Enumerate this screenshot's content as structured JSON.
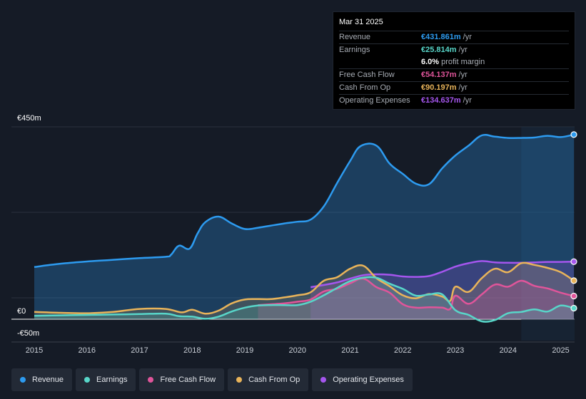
{
  "tooltip": {
    "date": "Mar 31 2025",
    "rows": [
      {
        "label": "Revenue",
        "value": "€431.861m",
        "unit": "/yr",
        "color": "#2d9bf0"
      },
      {
        "label": "Earnings",
        "value": "€25.814m",
        "unit": "/yr",
        "color": "#58d6c9"
      },
      {
        "label": "",
        "value": "6.0%",
        "unit": "profit margin",
        "color": "#ffffff"
      },
      {
        "label": "Free Cash Flow",
        "value": "€54.137m",
        "unit": "/yr",
        "color": "#e0559a"
      },
      {
        "label": "Cash From Op",
        "value": "€90.197m",
        "unit": "/yr",
        "color": "#e9b45a"
      },
      {
        "label": "Operating Expenses",
        "value": "€134.637m",
        "unit": "/yr",
        "color": "#a556ee"
      }
    ]
  },
  "legend": [
    {
      "label": "Revenue",
      "color": "#2d9bf0"
    },
    {
      "label": "Earnings",
      "color": "#58d6c9"
    },
    {
      "label": "Free Cash Flow",
      "color": "#e0559a"
    },
    {
      "label": "Cash From Op",
      "color": "#e9b45a"
    },
    {
      "label": "Operating Expenses",
      "color": "#a556ee"
    }
  ],
  "chart_data": {
    "type": "area",
    "y_tick_labels": [
      "€450m",
      "€0",
      "-€50m"
    ],
    "ylim": [
      -50,
      450
    ],
    "xlim": [
      2015.0,
      2025.25
    ],
    "x_ticks": [
      2015,
      2016,
      2017,
      2018,
      2019,
      2020,
      2021,
      2022,
      2023,
      2024,
      2025
    ],
    "x_tick_labels": [
      "2015",
      "2016",
      "2017",
      "2018",
      "2019",
      "2020",
      "2021",
      "2022",
      "2023",
      "2024",
      "2025"
    ],
    "forecast_start": 2024.25,
    "series": [
      {
        "name": "Revenue",
        "color": "#2d9bf0",
        "fill": true,
        "last_value": 431.861,
        "x": [
          2015.0,
          2015.3,
          2015.6,
          2016.0,
          2016.5,
          2017.0,
          2017.5,
          2017.6,
          2017.75,
          2017.95,
          2018.1,
          2018.25,
          2018.5,
          2018.75,
          2019.0,
          2019.25,
          2019.5,
          2019.75,
          2020.0,
          2020.25,
          2020.5,
          2020.75,
          2021.0,
          2021.2,
          2021.5,
          2021.75,
          2022.0,
          2022.25,
          2022.5,
          2022.75,
          2023.0,
          2023.25,
          2023.5,
          2023.75,
          2024.0,
          2024.25,
          2024.5,
          2024.75,
          2025.0,
          2025.25
        ],
        "values": [
          122,
          127,
          131,
          135,
          139,
          143,
          146,
          151,
          172,
          165,
          200,
          227,
          240,
          224,
          211,
          214,
          219,
          224,
          228,
          233,
          264,
          318,
          370,
          405,
          406,
          364,
          340,
          317,
          316,
          353,
          383,
          406,
          430,
          427,
          424,
          424,
          425,
          429,
          426,
          431.861
        ]
      },
      {
        "name": "Operating Expenses",
        "color": "#a556ee",
        "fill": true,
        "last_value": 134.637,
        "x": [
          2020.25,
          2020.5,
          2020.75,
          2021.0,
          2021.25,
          2021.5,
          2021.75,
          2022.0,
          2022.25,
          2022.5,
          2022.75,
          2023.0,
          2023.25,
          2023.5,
          2023.75,
          2024.0,
          2024.25,
          2024.5,
          2024.75,
          2025.0,
          2025.25
        ],
        "values": [
          75,
          80,
          86,
          95,
          103,
          105,
          104,
          100,
          99,
          101,
          111,
          123,
          131,
          136,
          133,
          132,
          132,
          133,
          134,
          134,
          134.637
        ]
      },
      {
        "name": "Cash From Op",
        "color": "#e9b45a",
        "fill": true,
        "last_value": 90.197,
        "x": [
          2015.0,
          2015.5,
          2016.0,
          2016.5,
          2017.0,
          2017.5,
          2017.8,
          2018.0,
          2018.25,
          2018.5,
          2018.75,
          2019.0,
          2019.25,
          2019.5,
          2019.75,
          2020.0,
          2020.25,
          2020.5,
          2020.75,
          2021.0,
          2021.25,
          2021.5,
          2021.75,
          2022.0,
          2022.25,
          2022.5,
          2022.75,
          2022.9,
          2023.0,
          2023.25,
          2023.5,
          2023.75,
          2024.0,
          2024.25,
          2024.5,
          2024.75,
          2025.0,
          2025.25
        ],
        "values": [
          17,
          15,
          14,
          17,
          24,
          24,
          16,
          22,
          13,
          20,
          37,
          46,
          47,
          47,
          51,
          56,
          63,
          90,
          98,
          118,
          125,
          96,
          77,
          56,
          49,
          59,
          53,
          43,
          76,
          64,
          96,
          118,
          110,
          131,
          127,
          120,
          110,
          90.197
        ]
      },
      {
        "name": "Free Cash Flow",
        "color": "#e0559a",
        "fill": true,
        "last_value": 54.137,
        "x": [
          2019.25,
          2019.5,
          2019.75,
          2020.0,
          2020.25,
          2020.5,
          2020.75,
          2021.0,
          2021.25,
          2021.5,
          2021.75,
          2022.0,
          2022.25,
          2022.5,
          2022.75,
          2022.9,
          2023.0,
          2023.25,
          2023.5,
          2023.75,
          2024.0,
          2024.25,
          2024.5,
          2024.75,
          2025.0,
          2025.25
        ],
        "values": [
          33,
          35,
          37,
          41,
          46,
          65,
          71,
          84,
          95,
          75,
          62,
          35,
          27,
          28,
          27,
          24,
          55,
          36,
          58,
          81,
          76,
          90,
          78,
          72,
          62,
          54.137
        ]
      },
      {
        "name": "Earnings",
        "color": "#58d6c9",
        "fill": true,
        "last_value": 25.814,
        "x": [
          2015.0,
          2015.5,
          2016.0,
          2016.5,
          2017.0,
          2017.5,
          2017.75,
          2018.0,
          2018.25,
          2018.5,
          2018.75,
          2019.0,
          2019.25,
          2019.5,
          2019.75,
          2020.0,
          2020.25,
          2020.5,
          2020.75,
          2021.0,
          2021.25,
          2021.5,
          2021.75,
          2022.0,
          2022.25,
          2022.5,
          2022.75,
          2023.0,
          2023.25,
          2023.5,
          2023.75,
          2024.0,
          2024.25,
          2024.5,
          2024.75,
          2025.0,
          2025.25
        ],
        "values": [
          8,
          9,
          10,
          11,
          12,
          13,
          7,
          6,
          1,
          6,
          18,
          27,
          32,
          33,
          33,
          33,
          41,
          56,
          73,
          89,
          97,
          97,
          83,
          71,
          55,
          58,
          58,
          21,
          10,
          -5,
          -2,
          14,
          17,
          23,
          18,
          32,
          25.814
        ]
      }
    ]
  }
}
